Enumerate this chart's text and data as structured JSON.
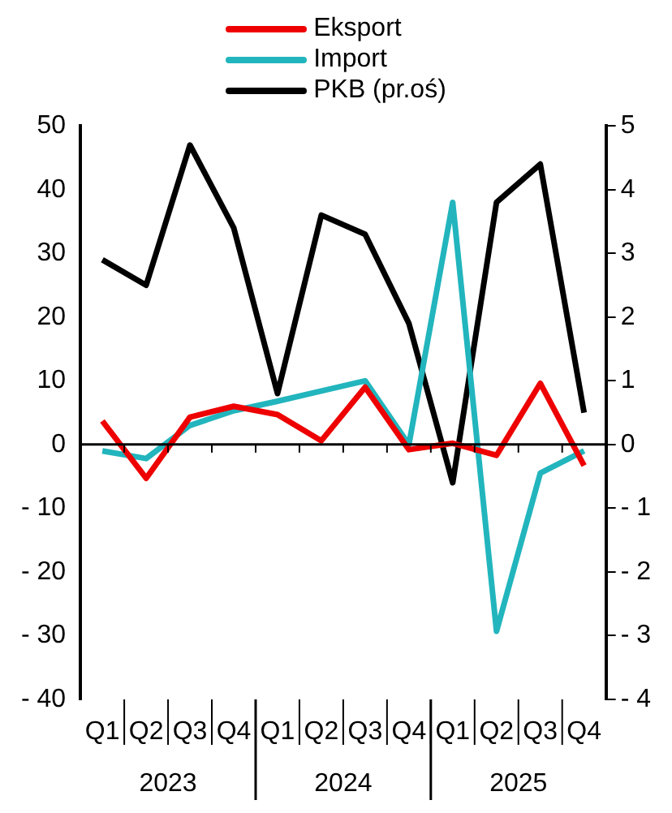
{
  "chart_data": {
    "type": "line",
    "categories": [
      "Q1",
      "Q2",
      "Q3",
      "Q4",
      "Q1",
      "Q2",
      "Q3",
      "Q4",
      "Q1",
      "Q2",
      "Q3",
      "Q4"
    ],
    "series": [
      {
        "name": "Eksport",
        "color": "#ee0000",
        "values": [
          3.7,
          -5.3,
          4.3,
          6,
          4.7,
          0.6,
          9,
          -0.8,
          0.2,
          -1.7,
          9.6,
          -3.3
        ]
      },
      {
        "name": "Import",
        "color": "#22b5bd",
        "values": [
          -1,
          -2.2,
          3,
          5.3,
          6.8,
          8.4,
          10,
          0,
          38,
          -29.3,
          -4.5,
          -1
        ]
      },
      {
        "name": "PKB (pr.oś)",
        "color": "#000000",
        "axis": "y2",
        "values": [
          2.9,
          2.5,
          4.7,
          3.4,
          0.8,
          3.6,
          3.3,
          1.9,
          -0.6,
          3.8,
          4.4,
          0.5
        ]
      }
    ],
    "ylim": [
      -40,
      50
    ],
    "yticks": [
      {
        "value": -40,
        "label": "- 40"
      },
      {
        "value": -30,
        "label": "- 30"
      },
      {
        "value": -20,
        "label": "- 20"
      },
      {
        "value": -10,
        "label": "- 10"
      },
      0,
      10,
      20,
      30,
      40,
      50
    ],
    "y2lim": [
      -4,
      5
    ],
    "y2ticks": [
      {
        "value": -4,
        "label": "- 4"
      },
      {
        "value": -3,
        "label": "- 3"
      },
      {
        "value": -2,
        "label": "- 2"
      },
      {
        "value": -1,
        "label": "- 1"
      },
      0,
      1,
      2,
      3,
      4,
      5
    ],
    "annotations": [
      "2023",
      "2024",
      "2025"
    ],
    "ref_lines": [
      {
        "axis": "y",
        "value": 0,
        "color": "#000000"
      }
    ],
    "legend": "top",
    "marker": "none",
    "line_style": "solid",
    "grid": false
  }
}
